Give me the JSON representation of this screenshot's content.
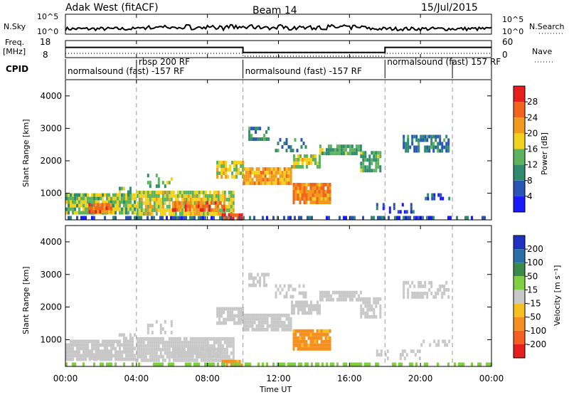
{
  "header": {
    "station": "Adak West (fitACF)",
    "beam": "Beam 14",
    "date": "15/Jul/2015"
  },
  "nsky": {
    "label": "N.Sky",
    "right_label": "N.Search",
    "ticks": [
      "10^5",
      "10^0"
    ],
    "right_ticks": [
      "10^5",
      "10^0"
    ]
  },
  "freq": {
    "label_line1": "Freq.",
    "label_line2": "[MHz]",
    "ticks": [
      "18",
      "8"
    ],
    "right_ticks": [
      "60",
      "0"
    ],
    "right_label": "Nave",
    "segments": [
      {
        "start": 0.0,
        "end": 10.0,
        "value": 14
      },
      {
        "start": 10.0,
        "end": 18.0,
        "value": 11
      },
      {
        "start": 18.0,
        "end": 24.0,
        "value": 14
      }
    ]
  },
  "cpid": {
    "label": "CPID",
    "entries": [
      {
        "start": 0.0,
        "text": "normalsound (fast) -157 RF"
      },
      {
        "start": 4.0,
        "text": "rbsp 200 RF"
      },
      {
        "start": 10.0,
        "text": "normalsound (fast) -157 RF"
      },
      {
        "start": 18.0,
        "text": "normalsound (fast) 157 RF"
      }
    ],
    "boundaries": [
      4.0,
      10.0,
      18.0,
      21.8
    ]
  },
  "time_axis": {
    "label": "Time UT",
    "ticks": [
      "00:00",
      "04:00",
      "08:00",
      "12:00",
      "16:00",
      "20:00",
      "00:00"
    ]
  },
  "range_axis": {
    "label": "Slant Range [km]",
    "ticks": [
      "1000",
      "2000",
      "3000",
      "4000"
    ]
  },
  "power_colorbar": {
    "label": "Power [dB]",
    "ticks": [
      "4",
      "8",
      "12",
      "16",
      "20",
      "24",
      "28"
    ],
    "colors": [
      "#1a1aff",
      "#2a55b5",
      "#2f8a6e",
      "#5db35d",
      "#f2d21e",
      "#f29a1e",
      "#f2641e",
      "#e61e1e"
    ]
  },
  "velocity_colorbar": {
    "label": "Velocity [m s⁻¹]",
    "ticks": [
      "200",
      "100",
      "50",
      "15",
      "-15",
      "-50",
      "-100",
      "-200"
    ],
    "colors": [
      "#2030c0",
      "#2a6fa5",
      "#3a8a4a",
      "#7fd040",
      "#c8c8c8",
      "#f7c020",
      "#f59020",
      "#f56020",
      "#e61e1e"
    ]
  },
  "chart_data": {
    "type": "heatmap",
    "x_unit": "hours UT",
    "xlim": [
      0,
      24
    ],
    "ylim": [
      180,
      4500
    ],
    "power_scale": [
      0,
      30
    ],
    "velocity_scale": [
      -250,
      250
    ],
    "regions": [
      {
        "t0": 0.0,
        "t1": 3.9,
        "r0": 420,
        "r1": 1000,
        "power": 14,
        "velocity": 0,
        "density": 0.9
      },
      {
        "t0": 1.3,
        "t1": 2.6,
        "r0": 480,
        "r1": 700,
        "power": 24,
        "velocity": 0,
        "density": 0.9
      },
      {
        "t0": 3.0,
        "t1": 3.9,
        "r0": 1000,
        "r1": 1200,
        "power": 12,
        "velocity": 0,
        "density": 0.6
      },
      {
        "t0": 4.0,
        "t1": 9.5,
        "r0": 420,
        "r1": 1080,
        "power": 16,
        "velocity": 0,
        "density": 0.9
      },
      {
        "t0": 6.0,
        "t1": 9.0,
        "r0": 520,
        "r1": 760,
        "power": 24,
        "velocity": 0,
        "density": 0.8
      },
      {
        "t0": 8.8,
        "t1": 10.0,
        "r0": 200,
        "r1": 380,
        "power": 26,
        "velocity": -60,
        "density": 0.9
      },
      {
        "t0": 4.6,
        "t1": 6.0,
        "r0": 1200,
        "r1": 1600,
        "power": 12,
        "velocity": 0,
        "density": 0.4
      },
      {
        "t0": 8.5,
        "t1": 10.0,
        "r0": 1500,
        "r1": 2000,
        "power": 16,
        "velocity": 0,
        "density": 0.8
      },
      {
        "t0": 10.0,
        "t1": 12.7,
        "r0": 1300,
        "r1": 1800,
        "power": 20,
        "velocity": 0,
        "density": 0.9
      },
      {
        "t0": 12.7,
        "t1": 14.3,
        "r0": 1800,
        "r1": 2200,
        "power": 16,
        "velocity": 0,
        "density": 0.8
      },
      {
        "t0": 14.3,
        "t1": 16.6,
        "r0": 2200,
        "r1": 2500,
        "power": 12,
        "velocity": 0,
        "density": 0.8
      },
      {
        "t0": 16.6,
        "t1": 17.8,
        "r0": 1700,
        "r1": 2300,
        "power": 12,
        "velocity": 0,
        "density": 0.8
      },
      {
        "t0": 12.8,
        "t1": 14.9,
        "r0": 720,
        "r1": 1320,
        "power": 22,
        "velocity": -60,
        "density": 0.95
      },
      {
        "t0": 10.3,
        "t1": 11.5,
        "r0": 2700,
        "r1": 3050,
        "power": 10,
        "velocity": 0,
        "density": 0.6
      },
      {
        "t0": 11.8,
        "t1": 13.5,
        "r0": 2300,
        "r1": 2700,
        "power": 8,
        "velocity": 0,
        "density": 0.4
      },
      {
        "t0": 19.0,
        "t1": 21.6,
        "r0": 2300,
        "r1": 2800,
        "power": 8,
        "velocity": 0,
        "density": 0.6
      },
      {
        "t0": 20.0,
        "t1": 21.6,
        "r0": 800,
        "r1": 1000,
        "power": 6,
        "velocity": 0,
        "density": 0.5
      },
      {
        "t0": 17.5,
        "t1": 20.0,
        "r0": 400,
        "r1": 700,
        "power": 4,
        "velocity": 0,
        "density": 0.3
      },
      {
        "t0": 0.0,
        "t1": 24.0,
        "r0": 200,
        "r1": 300,
        "power": 6,
        "velocity": 30,
        "density": 0.5
      }
    ]
  }
}
